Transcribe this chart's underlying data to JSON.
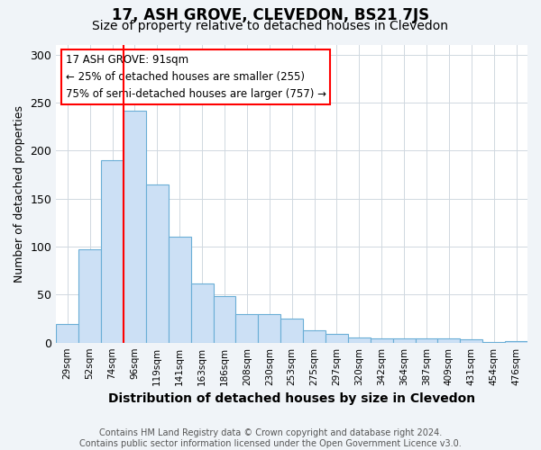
{
  "title": "17, ASH GROVE, CLEVEDON, BS21 7JS",
  "subtitle": "Size of property relative to detached houses in Clevedon",
  "xlabel": "Distribution of detached houses by size in Clevedon",
  "ylabel": "Number of detached properties",
  "categories": [
    "29sqm",
    "52sqm",
    "74sqm",
    "96sqm",
    "119sqm",
    "141sqm",
    "163sqm",
    "186sqm",
    "208sqm",
    "230sqm",
    "253sqm",
    "275sqm",
    "297sqm",
    "320sqm",
    "342sqm",
    "364sqm",
    "387sqm",
    "409sqm",
    "431sqm",
    "454sqm",
    "476sqm"
  ],
  "values": [
    19,
    97,
    190,
    242,
    165,
    110,
    62,
    48,
    30,
    30,
    25,
    13,
    9,
    5,
    4,
    4,
    4,
    4,
    3,
    1,
    2
  ],
  "bar_color": "#cce0f5",
  "bar_edgecolor": "#6aaed6",
  "bar_linewidth": 0.8,
  "red_line_x": 2.5,
  "annotation_text": "17 ASH GROVE: 91sqm\n← 25% of detached houses are smaller (255)\n75% of semi-detached houses are larger (757) →",
  "annotation_box_edgecolor": "red",
  "annotation_box_facecolor": "white",
  "red_line_color": "red",
  "ylim": [
    0,
    310
  ],
  "yticks": [
    0,
    50,
    100,
    150,
    200,
    250,
    300
  ],
  "footnote": "Contains HM Land Registry data © Crown copyright and database right 2024.\nContains public sector information licensed under the Open Government Licence v3.0.",
  "bg_color": "#f0f4f8",
  "plot_bg_color": "#ffffff",
  "title_fontsize": 12,
  "subtitle_fontsize": 10,
  "xlabel_fontsize": 10,
  "ylabel_fontsize": 9,
  "footnote_fontsize": 7,
  "annotation_fontsize": 8.5
}
